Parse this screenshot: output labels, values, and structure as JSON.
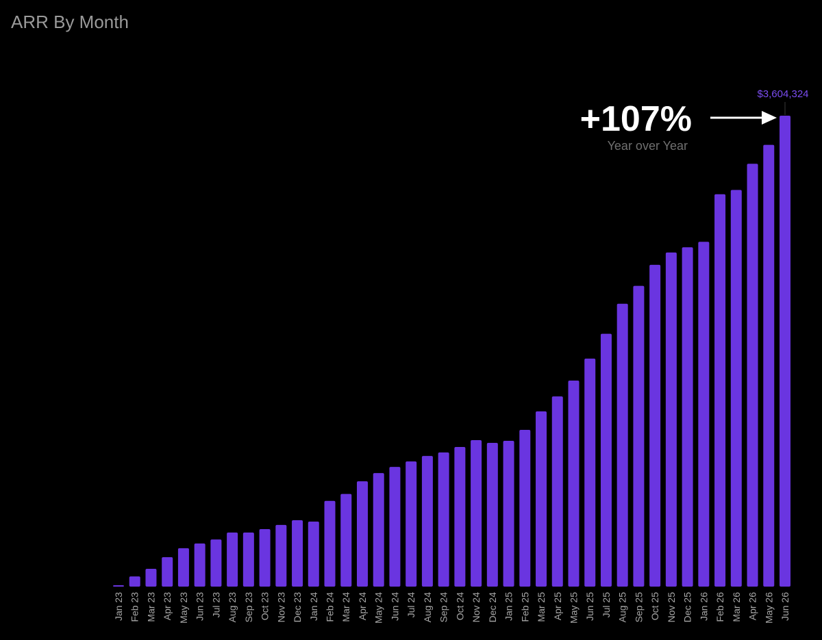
{
  "colors": {
    "background": "#000000",
    "bar": "#6a35e0",
    "value_label": "#7a4cf0",
    "title": "#9a9a9a",
    "tick_label": "#a8a8a8",
    "annotation": "#ffffff",
    "annotation_sub": "#707070"
  },
  "chart_data": {
    "type": "bar",
    "title": "ARR By Month",
    "xlabel": "",
    "ylabel": "",
    "ylim": [
      0,
      3604324
    ],
    "grid": false,
    "legend": "none",
    "categories": [
      "Jan 23",
      "Feb 23",
      "Mar 23",
      "Apr 23",
      "May 23",
      "Jun 23",
      "Jul 23",
      "Aug 23",
      "Sep 23",
      "Oct 23",
      "Nov 23",
      "Dec 23",
      "Jan 24",
      "Feb 24",
      "Mar 24",
      "Apr 24",
      "May 24",
      "Jun 24",
      "Jul 24",
      "Aug 24",
      "Sep 24",
      "Oct 24",
      "Nov 24",
      "Dec 24",
      "Jan 25",
      "Feb 25",
      "Mar 25",
      "Apr 25",
      "May 25",
      "Jun 25",
      "Jul 25",
      "Aug 25",
      "Sep 25",
      "Oct 25",
      "Nov 25",
      "Dec 25",
      "Jan 26",
      "Feb 26",
      "Mar 26",
      "Apr 26",
      "May 26",
      "Jun 26"
    ],
    "values": [
      10500,
      78000,
      136000,
      225000,
      294000,
      330000,
      361000,
      414000,
      414000,
      440000,
      472000,
      508000,
      498000,
      656000,
      709000,
      806000,
      869000,
      916000,
      958000,
      1000000,
      1027000,
      1069000,
      1121000,
      1100000,
      1116000,
      1200000,
      1341000,
      1456000,
      1577000,
      1745000,
      1935000,
      2165000,
      2302000,
      2463000,
      2557000,
      2597000,
      2639000,
      3003000,
      3036000,
      3236000,
      3381000,
      3604324
    ],
    "data_labels": [
      {
        "category": "Jun 26",
        "text": "$3,604,324"
      }
    ],
    "annotation": {
      "text": "+107%",
      "subtext": "Year over Year",
      "points_to": "Jun 26"
    }
  }
}
